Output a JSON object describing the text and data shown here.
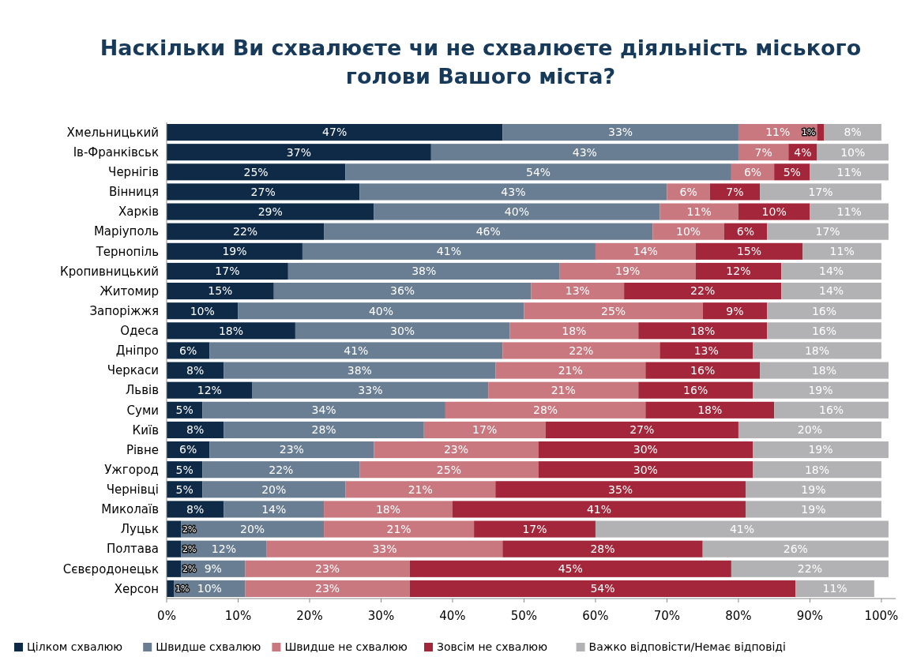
{
  "chart_data": {
    "type": "bar",
    "orientation": "horizontal",
    "stacked": true,
    "title": "Наскільки Ви схвалюєте чи не схвалюєте діяльність міського голови Вашого міста?",
    "categories": [
      "Хмельницький",
      "Ів-Франківськ",
      "Чернігів",
      "Вінниця",
      "Харків",
      "Маріуполь",
      "Тернопіль",
      "Кропивницький",
      "Житомир",
      "Запоріжжя",
      "Одеса",
      "Дніпро",
      "Черкаси",
      "Львів",
      "Суми",
      "Київ",
      "Рівне",
      "Ужгород",
      "Чернівці",
      "Миколаїв",
      "Луцьк",
      "Полтава",
      "Сєвєродонецьк",
      "Херсон"
    ],
    "series": [
      {
        "name": "Цілком схвалюю",
        "color": "#0e2a47",
        "values": [
          47,
          37,
          25,
          27,
          29,
          22,
          19,
          17,
          15,
          10,
          18,
          6,
          8,
          12,
          5,
          8,
          6,
          5,
          5,
          8,
          2,
          2,
          2,
          1
        ],
        "value_labels": [
          "47%",
          "37%",
          "25%",
          "27%",
          "29%",
          "22%",
          "19%",
          "17%",
          "15%",
          "10%",
          "18%",
          "6%",
          "8%",
          "12%",
          "5%",
          "8%",
          "6%",
          "5%",
          "5%",
          "8%",
          "2%",
          "2%",
          "2%",
          "1%"
        ]
      },
      {
        "name": "Швидше схвалюю",
        "color": "#697d93",
        "values": [
          33,
          43,
          54,
          43,
          40,
          46,
          41,
          38,
          36,
          40,
          30,
          41,
          38,
          33,
          34,
          28,
          23,
          22,
          20,
          14,
          20,
          12,
          9,
          10
        ],
        "value_labels": [
          "33%",
          "43%",
          "54%",
          "43%",
          "40%",
          "46%",
          "41%",
          "38%",
          "36%",
          "40%",
          "30%",
          "41%",
          "38%",
          "33%",
          "34%",
          "28%",
          "23%",
          "22%",
          "20%",
          "14%",
          "20%",
          "12%",
          "9%",
          "10%"
        ]
      },
      {
        "name": "Швидше не схвалюю",
        "color": "#c97880",
        "values": [
          11,
          7,
          6,
          6,
          11,
          10,
          14,
          19,
          13,
          25,
          18,
          22,
          21,
          21,
          28,
          17,
          23,
          25,
          21,
          18,
          21,
          33,
          23,
          23
        ],
        "value_labels": [
          "11%",
          "7%",
          "6%",
          "6%",
          "11%",
          "10%",
          "14%",
          "19%",
          "13%",
          "25%",
          "18%",
          "22%",
          "21%",
          "21%",
          "28%",
          "17%",
          "23%",
          "25%",
          "21%",
          "18%",
          "21%",
          "33%",
          "23%",
          "23%"
        ]
      },
      {
        "name": "Зовсім не схвалюю",
        "color": "#a3263a",
        "values": [
          1,
          4,
          5,
          7,
          10,
          6,
          15,
          12,
          22,
          9,
          18,
          13,
          16,
          16,
          18,
          27,
          30,
          30,
          35,
          41,
          17,
          28,
          45,
          54
        ],
        "value_labels": [
          "1%",
          "4%",
          "5%",
          "7%",
          "10%",
          "6%",
          "15%",
          "12%",
          "22%",
          "9%",
          "18%",
          "13%",
          "16%",
          "16%",
          "18%",
          "27%",
          "30%",
          "30%",
          "35%",
          "41%",
          "17%",
          "28%",
          "45%",
          "54%"
        ]
      },
      {
        "name": "Важко відповісти/Немає відповіді",
        "color": "#b2b2b4",
        "values": [
          8,
          10,
          11,
          17,
          11,
          17,
          11,
          14,
          14,
          16,
          16,
          18,
          18,
          19,
          16,
          20,
          19,
          18,
          19,
          19,
          41,
          26,
          22,
          11
        ],
        "value_labels": [
          "8%",
          "10%",
          "11%",
          "17%",
          "11%",
          "17%",
          "11%",
          "14%",
          "14%",
          "16%",
          "16%",
          "18%",
          "18%",
          "19%",
          "16%",
          "20%",
          "19%",
          "18%",
          "19%",
          "19%",
          "41%",
          "26%",
          "22%",
          "11%"
        ]
      }
    ],
    "xlim": [
      0,
      102
    ],
    "xticks": [
      {
        "value": 0,
        "label": "0%"
      },
      {
        "value": 10,
        "label": "10%"
      },
      {
        "value": 20,
        "label": "20%"
      },
      {
        "value": 30,
        "label": "30%"
      },
      {
        "value": 40,
        "label": "40%"
      },
      {
        "value": 50,
        "label": "50%"
      },
      {
        "value": 60,
        "label": "60%"
      },
      {
        "value": 70,
        "label": "70%"
      },
      {
        "value": 80,
        "label": "80%"
      },
      {
        "value": 90,
        "label": "90%"
      },
      {
        "value": 100,
        "label": "100%"
      }
    ],
    "legend": "bottom"
  }
}
